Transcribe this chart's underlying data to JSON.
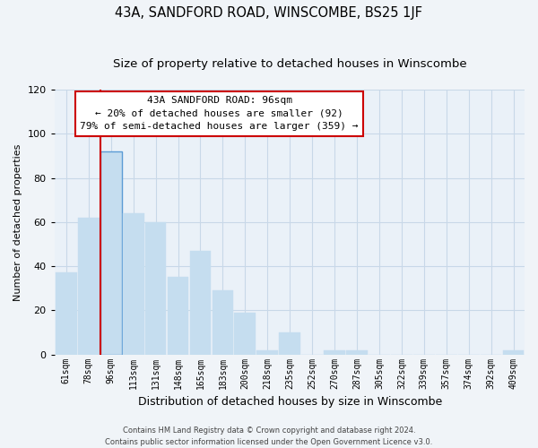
{
  "title": "43A, SANDFORD ROAD, WINSCOMBE, BS25 1JF",
  "subtitle": "Size of property relative to detached houses in Winscombe",
  "xlabel": "Distribution of detached houses by size in Winscombe",
  "ylabel": "Number of detached properties",
  "categories": [
    "61sqm",
    "78sqm",
    "96sqm",
    "113sqm",
    "131sqm",
    "148sqm",
    "165sqm",
    "183sqm",
    "200sqm",
    "218sqm",
    "235sqm",
    "252sqm",
    "270sqm",
    "287sqm",
    "305sqm",
    "322sqm",
    "339sqm",
    "357sqm",
    "374sqm",
    "392sqm",
    "409sqm"
  ],
  "values": [
    37,
    62,
    92,
    64,
    60,
    35,
    47,
    29,
    19,
    2,
    10,
    0,
    2,
    2,
    0,
    0,
    0,
    0,
    0,
    0,
    2
  ],
  "bar_color": "#c5ddef",
  "highlight_bar_index": 2,
  "highlight_bar_edge_color": "#5b9bd5",
  "vline_index": 2,
  "vline_color": "#cc0000",
  "ylim": [
    0,
    120
  ],
  "yticks": [
    0,
    20,
    40,
    60,
    80,
    100,
    120
  ],
  "annotation_title": "43A SANDFORD ROAD: 96sqm",
  "annotation_line1": "← 20% of detached houses are smaller (92)",
  "annotation_line2": "79% of semi-detached houses are larger (359) →",
  "annotation_box_facecolor": "#ffffff",
  "annotation_box_edgecolor": "#cc0000",
  "footer_line1": "Contains HM Land Registry data © Crown copyright and database right 2024.",
  "footer_line2": "Contains public sector information licensed under the Open Government Licence v3.0.",
  "background_color": "#f0f4f8",
  "plot_bg_color": "#eaf1f8",
  "grid_color": "#c8d8e8",
  "title_fontsize": 10.5,
  "subtitle_fontsize": 9.5,
  "bar_width": 0.95
}
